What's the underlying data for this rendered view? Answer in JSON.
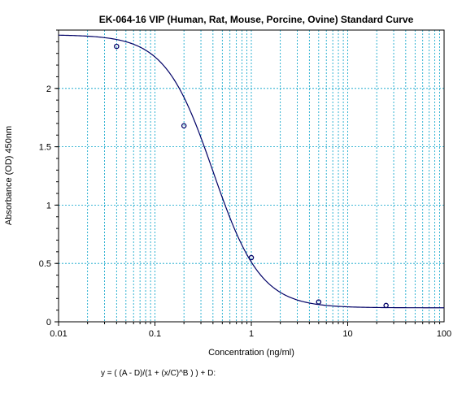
{
  "chart_data": {
    "type": "scatter",
    "title": "EK-064-16 VIP (Human, Rat, Mouse, Porcine, Ovine) Standard Curve",
    "xlabel": "Concentration (ng/ml)",
    "ylabel": "Absorbance (OD) 450nm",
    "x_scale": "log",
    "xlim": [
      0.01,
      100
    ],
    "ylim": [
      0,
      2.5
    ],
    "x_ticks": [
      0.01,
      0.1,
      1,
      10,
      100
    ],
    "x_tick_labels": [
      "0.01",
      "0.1",
      "1",
      "10",
      "100"
    ],
    "y_ticks": [
      0,
      0.5,
      1,
      1.5,
      2
    ],
    "y_tick_labels": [
      "0",
      "0.5",
      "1",
      "1.5",
      "2"
    ],
    "grid": true,
    "formula": "y = ( (A - D)/(1 + (x/C)^B ) ) + D:",
    "colors": {
      "curve": "#000066",
      "grid": "#00a0c8",
      "points": "#000066"
    },
    "points": {
      "x": [
        0.04,
        0.2,
        1,
        5,
        25
      ],
      "y": [
        2.36,
        1.68,
        0.55,
        0.17,
        0.14
      ]
    },
    "fit": {
      "A": 2.46,
      "B": 1.75,
      "C": 0.4,
      "D": 0.12
    }
  }
}
